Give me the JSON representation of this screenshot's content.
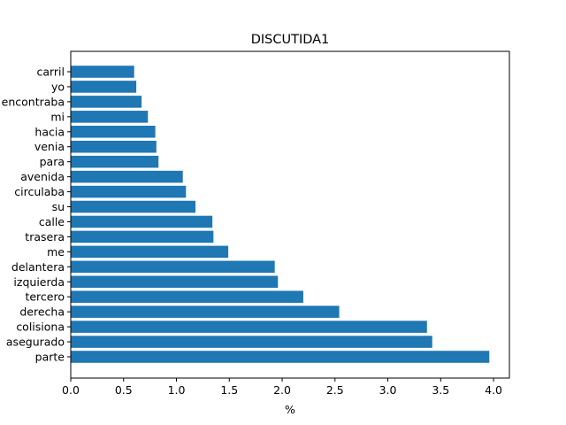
{
  "chart_data": {
    "type": "bar",
    "orientation": "horizontal",
    "title": "DISCUTIDA1",
    "xlabel": "%",
    "ylabel": "",
    "xlim": [
      0,
      4.15
    ],
    "xticks": [
      "0.0",
      "0.5",
      "1.0",
      "1.5",
      "2.0",
      "2.5",
      "3.0",
      "3.5",
      "4.0"
    ],
    "grid": false,
    "bar_color": "#1f77b4",
    "categories": [
      "parte",
      "asegurado",
      "colisiona",
      "derecha",
      "tercero",
      "izquierda",
      "delantera",
      "me",
      "trasera",
      "calle",
      "su",
      "circulaba",
      "avenida",
      "para",
      "venia",
      "hacia",
      "mi",
      "encontraba",
      "yo",
      "carril"
    ],
    "values": [
      3.96,
      3.42,
      3.37,
      2.54,
      2.2,
      1.96,
      1.93,
      1.49,
      1.35,
      1.34,
      1.18,
      1.09,
      1.06,
      0.83,
      0.81,
      0.8,
      0.73,
      0.67,
      0.62,
      0.6
    ]
  }
}
